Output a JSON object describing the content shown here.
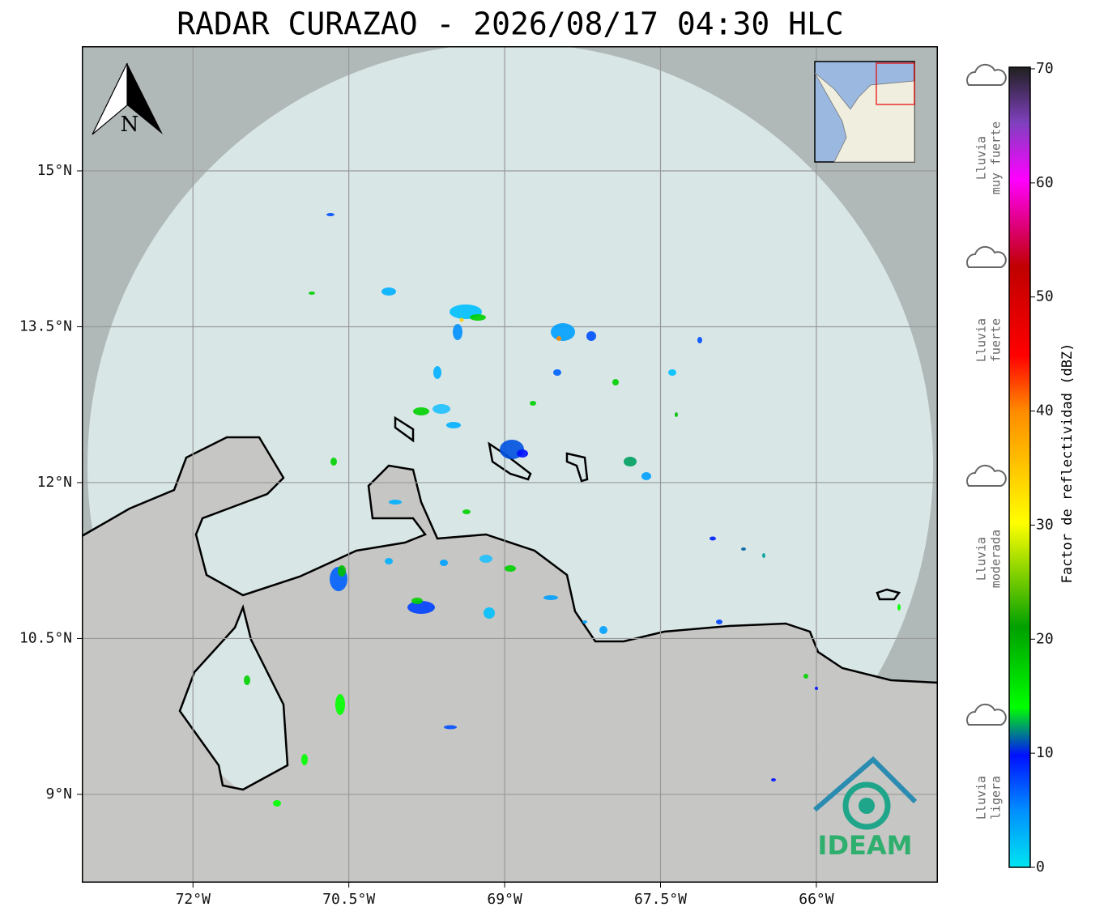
{
  "title": "RADAR CURAZAO - 2026/08/17 04:30 HLC",
  "map": {
    "xlim": [
      -73.07,
      -64.83
    ],
    "ylim": [
      8.15,
      16.2
    ],
    "xticks": [
      {
        "value": -72,
        "label": "72°W"
      },
      {
        "value": -70.5,
        "label": "70.5°W"
      },
      {
        "value": -69,
        "label": "69°W"
      },
      {
        "value": -67.5,
        "label": "67.5°W"
      },
      {
        "value": -66,
        "label": "66°W"
      }
    ],
    "yticks": [
      {
        "value": 15,
        "label": "15°N"
      },
      {
        "value": 13.5,
        "label": "13.5°N"
      },
      {
        "value": 12,
        "label": "12°N"
      },
      {
        "value": 10.5,
        "label": "10.5°N"
      },
      {
        "value": 9,
        "label": "9°N"
      }
    ],
    "grid": true
  },
  "north_label": "N",
  "colorbar": {
    "label": "Factor de reflectividad (dBZ)",
    "lim": [
      0,
      70
    ],
    "ticks": [
      0,
      10,
      20,
      30,
      40,
      50,
      60,
      70
    ]
  },
  "rain_levels": [
    {
      "lines": [
        "Lluvia",
        "muy fuerte"
      ]
    },
    {
      "lines": [
        "Lluvia",
        "fuerte"
      ]
    },
    {
      "lines": [
        "Lluvia",
        "moderada"
      ]
    },
    {
      "lines": [
        "Lluvia",
        "ligera"
      ]
    }
  ],
  "logo": "IDEAM"
}
